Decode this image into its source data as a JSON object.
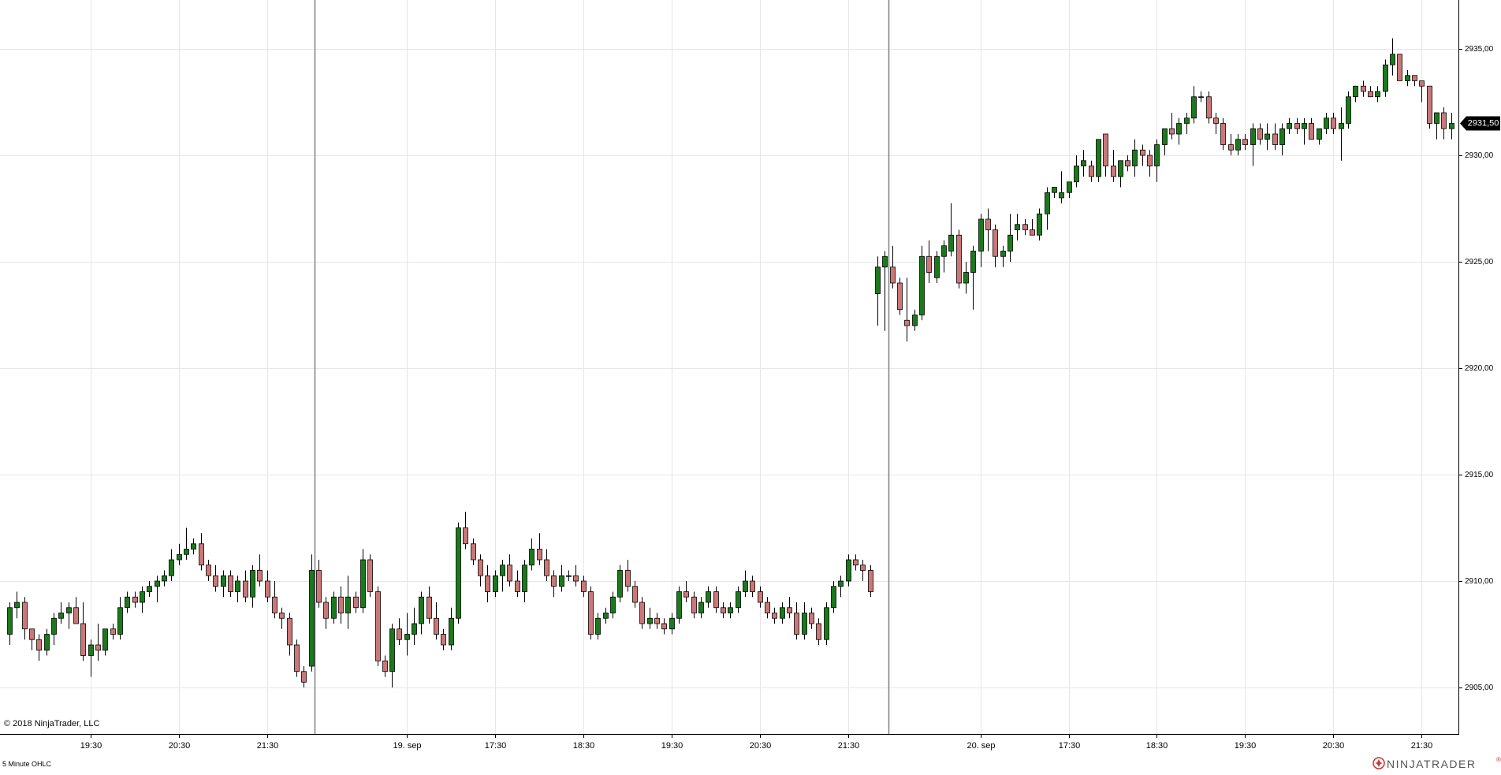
{
  "copyright": "© 2018 NinjaTrader, LLC",
  "footer_label": "5 Minute OHLC",
  "brand": {
    "name": "NINJATRADER",
    "trademark": "®"
  },
  "price_marker": {
    "value": 2931.5,
    "label": "2931,50"
  },
  "colors": {
    "up": "#1a7a1a",
    "down": "#cc7777",
    "grid": "#e6e6e6",
    "session_line": "#808080",
    "marker_bg": "#000000",
    "brand_accent": "#cc3333"
  },
  "chart_data": {
    "type": "candlestick",
    "interval": "5 Minute",
    "y_ticks": [
      {
        "value": 2905,
        "label": "2905,00"
      },
      {
        "value": 2910,
        "label": "2910,00"
      },
      {
        "value": 2915,
        "label": "2915,00"
      },
      {
        "value": 2920,
        "label": "2920,00"
      },
      {
        "value": 2925,
        "label": "2925,00"
      },
      {
        "value": 2930,
        "label": "2930,00"
      },
      {
        "value": 2935,
        "label": "2935,00"
      }
    ],
    "x_ticks": [
      {
        "bar": 11,
        "label": "19:30"
      },
      {
        "bar": 23,
        "label": "20:30"
      },
      {
        "bar": 35,
        "label": "21:30"
      },
      {
        "bar": 54,
        "label": "19. sep"
      },
      {
        "bar": 66,
        "label": "17:30"
      },
      {
        "bar": 78,
        "label": "18:30"
      },
      {
        "bar": 90,
        "label": "19:30"
      },
      {
        "bar": 102,
        "label": "20:30"
      },
      {
        "bar": 114,
        "label": "21:30"
      },
      {
        "bar": 132,
        "label": "20. sep"
      },
      {
        "bar": 144,
        "label": "17:30"
      },
      {
        "bar": 156,
        "label": "18:30"
      },
      {
        "bar": 168,
        "label": "19:30"
      },
      {
        "bar": 180,
        "label": "20:30"
      },
      {
        "bar": 192,
        "label": "21:30"
      }
    ],
    "session_breaks": [
      41.5,
      119.5
    ],
    "grid": true,
    "ohlc": [
      [
        2907.5,
        2909.0,
        2907.0,
        2908.75
      ],
      [
        2908.75,
        2909.5,
        2908.25,
        2909.0
      ],
      [
        2909.0,
        2909.25,
        2907.25,
        2907.75
      ],
      [
        2907.75,
        2907.75,
        2906.75,
        2907.25
      ],
      [
        2907.25,
        2907.5,
        2906.25,
        2906.75
      ],
      [
        2906.75,
        2907.75,
        2906.5,
        2907.5
      ],
      [
        2907.5,
        2908.5,
        2907.0,
        2908.25
      ],
      [
        2908.25,
        2909.0,
        2908.0,
        2908.5
      ],
      [
        2908.5,
        2909.0,
        2907.75,
        2908.75
      ],
      [
        2908.75,
        2909.25,
        2908.25,
        2908.0
      ],
      [
        2908.0,
        2909.0,
        2906.25,
        2906.5
      ],
      [
        2906.5,
        2907.25,
        2905.5,
        2907.0
      ],
      [
        2907.0,
        2908.0,
        2906.25,
        2906.75
      ],
      [
        2906.75,
        2907.75,
        2906.5,
        2907.75
      ],
      [
        2907.75,
        2908.0,
        2907.25,
        2907.5
      ],
      [
        2907.5,
        2909.25,
        2907.25,
        2908.75
      ],
      [
        2908.75,
        2909.5,
        2908.5,
        2909.25
      ],
      [
        2909.25,
        2909.5,
        2908.75,
        2909.0
      ],
      [
        2909.0,
        2909.75,
        2908.5,
        2909.5
      ],
      [
        2909.5,
        2910.0,
        2909.25,
        2909.75
      ],
      [
        2909.75,
        2910.25,
        2909.0,
        2910.0
      ],
      [
        2910.0,
        2910.5,
        2909.75,
        2910.25
      ],
      [
        2910.25,
        2911.5,
        2910.0,
        2911.0
      ],
      [
        2911.0,
        2911.75,
        2910.75,
        2911.25
      ],
      [
        2911.25,
        2912.5,
        2911.0,
        2911.5
      ],
      [
        2911.5,
        2912.0,
        2911.25,
        2911.75
      ],
      [
        2911.75,
        2912.25,
        2910.5,
        2910.75
      ],
      [
        2910.75,
        2911.0,
        2910.0,
        2910.25
      ],
      [
        2910.25,
        2910.75,
        2909.5,
        2909.75
      ],
      [
        2909.75,
        2910.5,
        2909.25,
        2910.25
      ],
      [
        2910.25,
        2910.5,
        2909.25,
        2909.5
      ],
      [
        2909.5,
        2910.25,
        2909.0,
        2910.0
      ],
      [
        2910.0,
        2910.5,
        2909.0,
        2909.25
      ],
      [
        2909.25,
        2910.75,
        2908.75,
        2910.5
      ],
      [
        2910.5,
        2911.25,
        2909.75,
        2910.0
      ],
      [
        2910.0,
        2910.5,
        2909.0,
        2909.25
      ],
      [
        2909.25,
        2910.0,
        2908.25,
        2908.5
      ],
      [
        2908.5,
        2908.75,
        2907.75,
        2908.25
      ],
      [
        2908.25,
        2908.5,
        2906.5,
        2907.0
      ],
      [
        2907.0,
        2907.25,
        2905.5,
        2905.75
      ],
      [
        2905.75,
        2906.0,
        2905.0,
        2905.25
      ],
      [
        2906.0,
        2911.25,
        2905.75,
        2910.5
      ],
      [
        2910.5,
        2911.0,
        2908.75,
        2909.0
      ],
      [
        2909.0,
        2909.25,
        2907.75,
        2908.25
      ],
      [
        2908.25,
        2909.5,
        2908.0,
        2909.25
      ],
      [
        2909.25,
        2909.75,
        2908.0,
        2908.5
      ],
      [
        2908.5,
        2910.25,
        2907.75,
        2909.25
      ],
      [
        2909.25,
        2909.5,
        2908.5,
        2908.75
      ],
      [
        2908.75,
        2911.5,
        2908.5,
        2911.0
      ],
      [
        2911.0,
        2911.25,
        2909.25,
        2909.5
      ],
      [
        2909.5,
        2909.75,
        2906.0,
        2906.25
      ],
      [
        2906.25,
        2906.5,
        2905.5,
        2905.75
      ],
      [
        2905.75,
        2908.0,
        2905.0,
        2907.75
      ],
      [
        2907.75,
        2908.25,
        2907.0,
        2907.25
      ],
      [
        2907.25,
        2908.5,
        2906.5,
        2907.5
      ],
      [
        2907.5,
        2908.75,
        2907.0,
        2908.0
      ],
      [
        2908.0,
        2909.5,
        2907.5,
        2909.25
      ],
      [
        2909.25,
        2909.75,
        2908.0,
        2908.25
      ],
      [
        2908.25,
        2909.0,
        2907.25,
        2907.5
      ],
      [
        2907.5,
        2907.75,
        2906.75,
        2907.0
      ],
      [
        2907.0,
        2908.75,
        2906.75,
        2908.25
      ],
      [
        2908.25,
        2912.75,
        2908.0,
        2912.5
      ],
      [
        2912.5,
        2913.25,
        2911.5,
        2911.75
      ],
      [
        2911.75,
        2912.0,
        2910.75,
        2911.0
      ],
      [
        2911.0,
        2911.25,
        2909.75,
        2910.25
      ],
      [
        2910.25,
        2910.75,
        2909.0,
        2909.5
      ],
      [
        2909.5,
        2910.5,
        2909.25,
        2910.25
      ],
      [
        2910.25,
        2911.0,
        2909.5,
        2910.75
      ],
      [
        2910.75,
        2911.25,
        2909.75,
        2910.0
      ],
      [
        2910.0,
        2910.5,
        2909.25,
        2909.5
      ],
      [
        2909.5,
        2911.0,
        2909.0,
        2910.75
      ],
      [
        2910.75,
        2912.0,
        2910.5,
        2911.5
      ],
      [
        2911.5,
        2912.25,
        2910.75,
        2911.0
      ],
      [
        2911.0,
        2911.5,
        2910.0,
        2910.25
      ],
      [
        2910.25,
        2910.5,
        2909.25,
        2909.75
      ],
      [
        2909.75,
        2910.75,
        2909.5,
        2910.25
      ],
      [
        2910.25,
        2910.5,
        2910.0,
        2910.25
      ],
      [
        2910.25,
        2910.75,
        2909.75,
        2910.0
      ],
      [
        2910.0,
        2910.25,
        2909.25,
        2909.5
      ],
      [
        2909.5,
        2909.75,
        2907.25,
        2907.5
      ],
      [
        2907.5,
        2908.5,
        2907.25,
        2908.25
      ],
      [
        2908.25,
        2908.75,
        2908.0,
        2908.5
      ],
      [
        2908.5,
        2909.5,
        2908.25,
        2909.25
      ],
      [
        2909.25,
        2910.75,
        2909.0,
        2910.5
      ],
      [
        2910.5,
        2911.0,
        2909.5,
        2909.75
      ],
      [
        2909.75,
        2910.0,
        2908.75,
        2909.0
      ],
      [
        2909.0,
        2909.25,
        2907.75,
        2908.0
      ],
      [
        2908.0,
        2908.75,
        2907.75,
        2908.25
      ],
      [
        2908.25,
        2908.5,
        2907.75,
        2908.0
      ],
      [
        2908.0,
        2908.25,
        2907.5,
        2907.75
      ],
      [
        2907.75,
        2908.5,
        2907.5,
        2908.25
      ],
      [
        2908.25,
        2909.75,
        2908.0,
        2909.5
      ],
      [
        2909.5,
        2910.0,
        2909.0,
        2909.25
      ],
      [
        2909.25,
        2909.5,
        2908.25,
        2908.5
      ],
      [
        2908.5,
        2909.25,
        2908.25,
        2909.0
      ],
      [
        2909.0,
        2909.75,
        2908.75,
        2909.5
      ],
      [
        2909.5,
        2909.75,
        2908.5,
        2908.75
      ],
      [
        2908.75,
        2909.0,
        2908.25,
        2908.5
      ],
      [
        2908.5,
        2909.0,
        2908.25,
        2908.75
      ],
      [
        2908.75,
        2909.75,
        2908.5,
        2909.5
      ],
      [
        2909.5,
        2910.5,
        2909.25,
        2910.0
      ],
      [
        2910.0,
        2910.25,
        2909.25,
        2909.5
      ],
      [
        2909.5,
        2909.75,
        2908.75,
        2909.0
      ],
      [
        2909.0,
        2909.25,
        2908.25,
        2908.5
      ],
      [
        2908.5,
        2908.75,
        2908.0,
        2908.25
      ],
      [
        2908.25,
        2909.0,
        2908.0,
        2908.75
      ],
      [
        2908.75,
        2909.25,
        2908.25,
        2908.5
      ],
      [
        2908.5,
        2909.0,
        2907.25,
        2907.5
      ],
      [
        2907.5,
        2909.0,
        2907.25,
        2908.5
      ],
      [
        2908.5,
        2908.75,
        2907.75,
        2908.0
      ],
      [
        2908.0,
        2908.25,
        2907.0,
        2907.25
      ],
      [
        2907.25,
        2909.0,
        2907.0,
        2908.75
      ],
      [
        2908.75,
        2910.0,
        2908.5,
        2909.75
      ],
      [
        2909.75,
        2910.25,
        2909.25,
        2910.0
      ],
      [
        2910.0,
        2911.25,
        2909.75,
        2911.0
      ],
      [
        2911.0,
        2911.25,
        2910.5,
        2910.75
      ],
      [
        2910.75,
        2911.0,
        2910.0,
        2910.5
      ],
      [
        2910.5,
        2910.75,
        2909.25,
        2909.5
      ],
      [
        2923.5,
        2925.25,
        2922.0,
        2924.75
      ],
      [
        2924.75,
        2925.5,
        2921.75,
        2925.25
      ],
      [
        2924.75,
        2925.75,
        2923.75,
        2924.0
      ],
      [
        2924.0,
        2924.25,
        2922.5,
        2922.75
      ],
      [
        2922.25,
        2924.25,
        2921.25,
        2922.0
      ],
      [
        2922.0,
        2922.75,
        2921.75,
        2922.5
      ],
      [
        2922.5,
        2925.75,
        2922.25,
        2925.25
      ],
      [
        2925.25,
        2926.0,
        2924.0,
        2924.5
      ],
      [
        2924.25,
        2925.5,
        2924.0,
        2925.25
      ],
      [
        2925.25,
        2926.0,
        2924.5,
        2925.75
      ],
      [
        2925.5,
        2927.75,
        2925.25,
        2926.25
      ],
      [
        2926.25,
        2926.5,
        2923.75,
        2924.0
      ],
      [
        2924.0,
        2925.0,
        2923.5,
        2924.5
      ],
      [
        2924.5,
        2925.75,
        2922.75,
        2925.5
      ],
      [
        2925.5,
        2927.25,
        2924.75,
        2927.0
      ],
      [
        2927.0,
        2927.5,
        2925.5,
        2926.5
      ],
      [
        2926.5,
        2926.75,
        2924.75,
        2925.25
      ],
      [
        2925.25,
        2925.75,
        2924.75,
        2925.5
      ],
      [
        2925.5,
        2927.25,
        2925.0,
        2926.25
      ],
      [
        2926.5,
        2927.25,
        2926.0,
        2926.75
      ],
      [
        2926.75,
        2927.0,
        2926.25,
        2926.5
      ],
      [
        2926.5,
        2927.0,
        2926.25,
        2926.25
      ],
      [
        2926.25,
        2927.5,
        2926.0,
        2927.25
      ],
      [
        2927.25,
        2928.5,
        2926.5,
        2928.25
      ],
      [
        2928.25,
        2928.5,
        2928.0,
        2928.5
      ],
      [
        2928.0,
        2929.25,
        2927.75,
        2928.25
      ],
      [
        2928.25,
        2928.75,
        2928.0,
        2928.75
      ],
      [
        2928.75,
        2930.0,
        2928.5,
        2929.5
      ],
      [
        2929.5,
        2930.25,
        2929.0,
        2929.75
      ],
      [
        2929.5,
        2929.75,
        2928.75,
        2929.0
      ],
      [
        2929.0,
        2930.75,
        2928.75,
        2930.75
      ],
      [
        2931.0,
        2931.0,
        2929.0,
        2929.5
      ],
      [
        2929.5,
        2930.25,
        2928.75,
        2929.0
      ],
      [
        2929.0,
        2929.75,
        2928.5,
        2929.75
      ],
      [
        2929.75,
        2930.0,
        2929.25,
        2929.5
      ],
      [
        2929.5,
        2930.75,
        2929.0,
        2930.25
      ],
      [
        2930.25,
        2930.5,
        2929.5,
        2930.0
      ],
      [
        2930.0,
        2930.25,
        2929.0,
        2929.5
      ],
      [
        2929.5,
        2930.75,
        2928.75,
        2930.5
      ],
      [
        2930.5,
        2931.25,
        2930.0,
        2931.25
      ],
      [
        2931.25,
        2932.0,
        2930.75,
        2931.0
      ],
      [
        2931.0,
        2931.75,
        2930.5,
        2931.5
      ],
      [
        2931.5,
        2932.0,
        2931.0,
        2931.75
      ],
      [
        2931.75,
        2933.25,
        2931.5,
        2932.75
      ],
      [
        2932.75,
        2933.0,
        2932.5,
        2932.75
      ],
      [
        2932.75,
        2933.0,
        2931.5,
        2931.75
      ],
      [
        2931.75,
        2932.0,
        2931.0,
        2931.5
      ],
      [
        2931.5,
        2931.75,
        2930.25,
        2930.5
      ],
      [
        2930.5,
        2931.0,
        2930.0,
        2930.25
      ],
      [
        2930.25,
        2931.0,
        2930.0,
        2930.75
      ],
      [
        2930.75,
        2931.0,
        2930.25,
        2930.5
      ],
      [
        2930.5,
        2931.5,
        2929.5,
        2931.25
      ],
      [
        2931.25,
        2931.5,
        2930.5,
        2930.75
      ],
      [
        2930.75,
        2931.5,
        2930.25,
        2931.0
      ],
      [
        2931.0,
        2931.5,
        2930.25,
        2930.5
      ],
      [
        2930.5,
        2931.5,
        2930.0,
        2931.25
      ],
      [
        2931.25,
        2931.75,
        2931.0,
        2931.5
      ],
      [
        2931.5,
        2931.75,
        2931.0,
        2931.25
      ],
      [
        2931.25,
        2931.75,
        2930.5,
        2931.5
      ],
      [
        2931.5,
        2931.75,
        2930.75,
        2930.75
      ],
      [
        2930.75,
        2931.25,
        2930.5,
        2931.25
      ],
      [
        2931.25,
        2932.0,
        2931.0,
        2931.75
      ],
      [
        2931.75,
        2932.0,
        2931.0,
        2931.25
      ],
      [
        2931.25,
        2932.25,
        2929.75,
        2931.5
      ],
      [
        2931.5,
        2933.0,
        2931.25,
        2932.75
      ],
      [
        2932.75,
        2933.25,
        2932.5,
        2933.25
      ],
      [
        2933.25,
        2933.5,
        2932.75,
        2933.0
      ],
      [
        2933.0,
        2933.25,
        2932.75,
        2932.75
      ],
      [
        2932.75,
        2933.25,
        2932.5,
        2933.0
      ],
      [
        2933.0,
        2934.5,
        2932.75,
        2934.25
      ],
      [
        2934.25,
        2935.5,
        2933.75,
        2934.75
      ],
      [
        2934.75,
        2934.75,
        2933.5,
        2933.5
      ],
      [
        2933.5,
        2934.0,
        2933.25,
        2933.75
      ],
      [
        2933.75,
        2933.75,
        2933.25,
        2933.5
      ],
      [
        2933.5,
        2933.5,
        2932.5,
        2933.25
      ],
      [
        2933.25,
        2933.25,
        2931.25,
        2931.5
      ],
      [
        2931.5,
        2932.0,
        2930.75,
        2932.0
      ],
      [
        2932.0,
        2932.25,
        2930.75,
        2931.25
      ],
      [
        2931.25,
        2932.0,
        2930.75,
        2931.5
      ]
    ]
  }
}
